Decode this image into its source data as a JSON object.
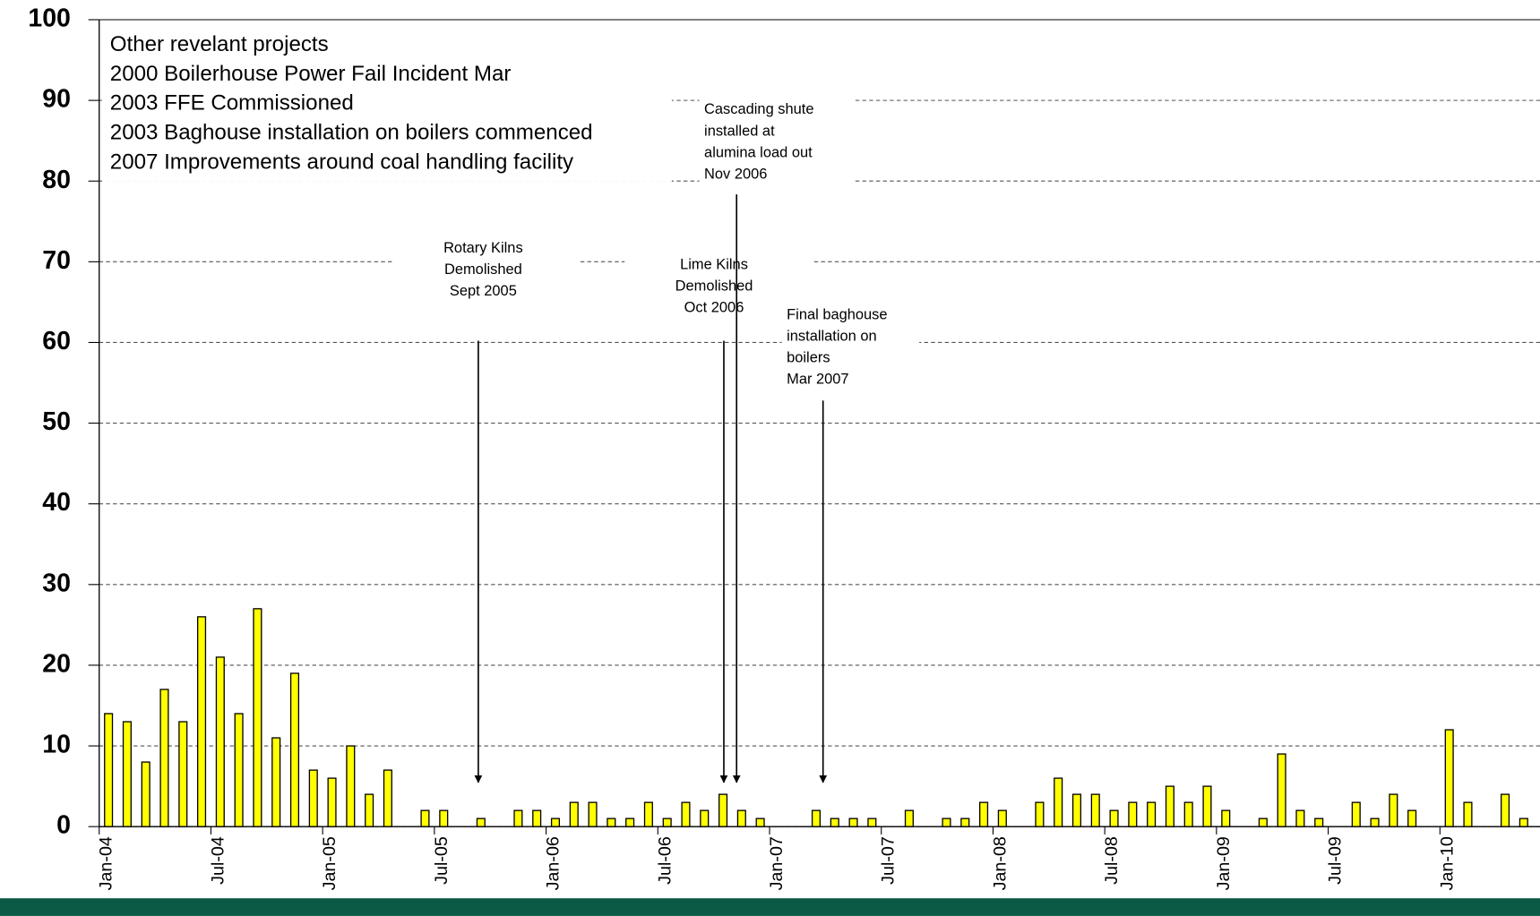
{
  "chart_data": {
    "type": "bar",
    "color": "#ffff00",
    "edge_color": "#000000",
    "grid": true,
    "categories": [
      "Jan-04",
      null,
      null,
      null,
      null,
      null,
      "Jul-04",
      null,
      null,
      null,
      null,
      null,
      "Jan-05",
      null,
      null,
      null,
      null,
      null,
      "Jul-05",
      null,
      null,
      null,
      null,
      null,
      "Jan-06",
      null,
      null,
      null,
      null,
      null,
      "Jul-06",
      null,
      null,
      null,
      null,
      null,
      "Jan-07",
      null,
      null,
      null,
      null,
      null,
      "Jul-07",
      null,
      null,
      null,
      null,
      null,
      "Jan-08",
      null,
      null,
      null,
      null,
      null,
      "Jul-08",
      null,
      null,
      null,
      null,
      null,
      "Jan-09",
      null,
      null,
      null,
      null,
      null,
      "Jul-09",
      null,
      null,
      null,
      null,
      null,
      "Jan-10",
      null,
      null,
      null,
      null
    ],
    "values": [
      14,
      13,
      8,
      17,
      13,
      26,
      21,
      14,
      27,
      11,
      19,
      7,
      6,
      10,
      4,
      7,
      0,
      2,
      2,
      0,
      1,
      0,
      2,
      2,
      1,
      3,
      3,
      1,
      1,
      3,
      1,
      3,
      2,
      4,
      2,
      1,
      0,
      0,
      2,
      1,
      1,
      1,
      0,
      2,
      0,
      1,
      1,
      3,
      2,
      0,
      3,
      6,
      4,
      4,
      2,
      3,
      3,
      5,
      3,
      5,
      2,
      0,
      1,
      9,
      2,
      1,
      0,
      3,
      1,
      4,
      2,
      0,
      12,
      3,
      0,
      4,
      1
    ],
    "ylim": [
      0,
      100
    ],
    "yticks": [
      0,
      10,
      20,
      30,
      40,
      50,
      60,
      70,
      80,
      90,
      100
    ],
    "notes_box": [
      "Other revelant projects",
      "2000 Boilerhouse Power Fail Incident Mar",
      "2003 FFE Commissioned",
      "2003 Baghouse installation on boilers commenced",
      "2007 Improvements around coal handling facility"
    ],
    "annotations": [
      {
        "lines": [
          "Rotary Kilns",
          "Demolished",
          "Sept 2005"
        ]
      },
      {
        "lines": [
          "Lime Kilns",
          "Demolished",
          "Oct 2006"
        ]
      },
      {
        "lines": [
          "Cascading shute",
          "installed at",
          "alumina load out",
          "Nov 2006"
        ]
      },
      {
        "lines": [
          "Final baghouse",
          "installation on",
          "boilers",
          "Mar 2007"
        ]
      }
    ]
  }
}
